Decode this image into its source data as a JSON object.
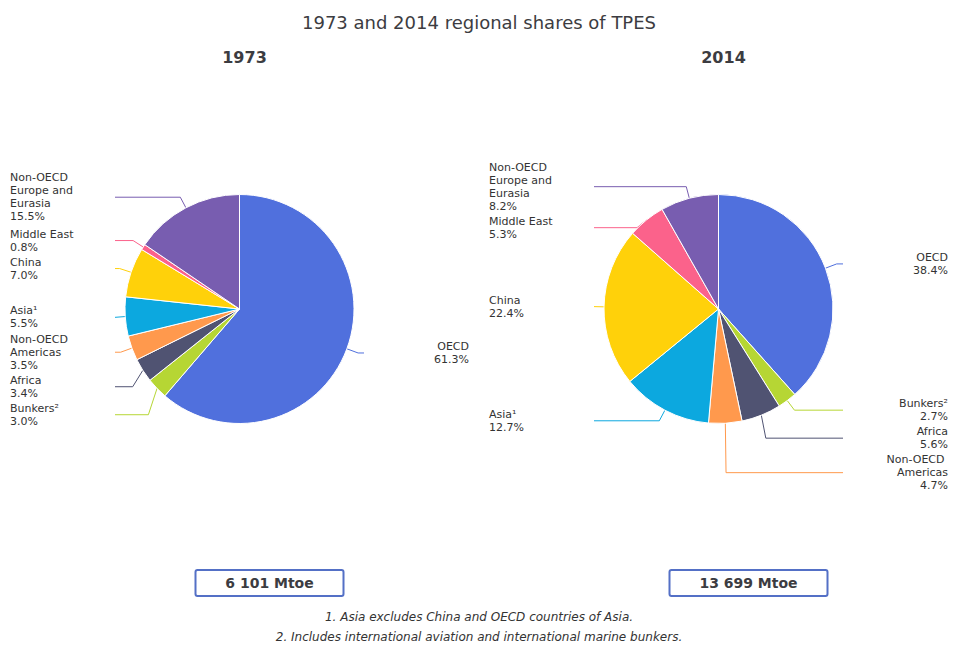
{
  "title": "1973 and 2014 regional shares of TPES",
  "annotations": [
    "1. Asia excludes China and OECD countries of Asia.",
    "2. Includes international aviation and international marine bunkers."
  ],
  "chart_data": [
    {
      "type": "pie",
      "title": "1973",
      "categories": [
        "OECD",
        "Bunkers²",
        "Africa",
        "Non-OECD Americas",
        "Asia¹",
        "China",
        "Middle East",
        "Non-OECD Europe and Eurasia"
      ],
      "values": [
        61.3,
        3.0,
        3.4,
        3.5,
        5.5,
        7.0,
        0.8,
        15.5
      ],
      "value_labels": [
        "61.3%",
        "3.0%",
        "3.4%",
        "3.5%",
        "5.5%",
        "7.0%",
        "0.8%",
        "15.5%"
      ],
      "data_labels": true,
      "annotations": [
        "6 101 Mtoe"
      ]
    },
    {
      "type": "pie",
      "title": "2014",
      "categories": [
        "OECD",
        "Bunkers²",
        "Africa",
        "Non-OECD Americas",
        "Asia¹",
        "China",
        "Middle East",
        "Non-OECD Europe and Eurasia"
      ],
      "values": [
        38.4,
        2.7,
        5.6,
        4.7,
        12.7,
        22.4,
        5.3,
        8.2
      ],
      "value_labels": [
        "38.4%",
        "2.7%",
        "5.6%",
        "4.7%",
        "12.7%",
        "22.4%",
        "5.3%",
        "8.2%"
      ],
      "data_labels": true,
      "annotations": [
        "13 699 Mtoe"
      ]
    }
  ]
}
